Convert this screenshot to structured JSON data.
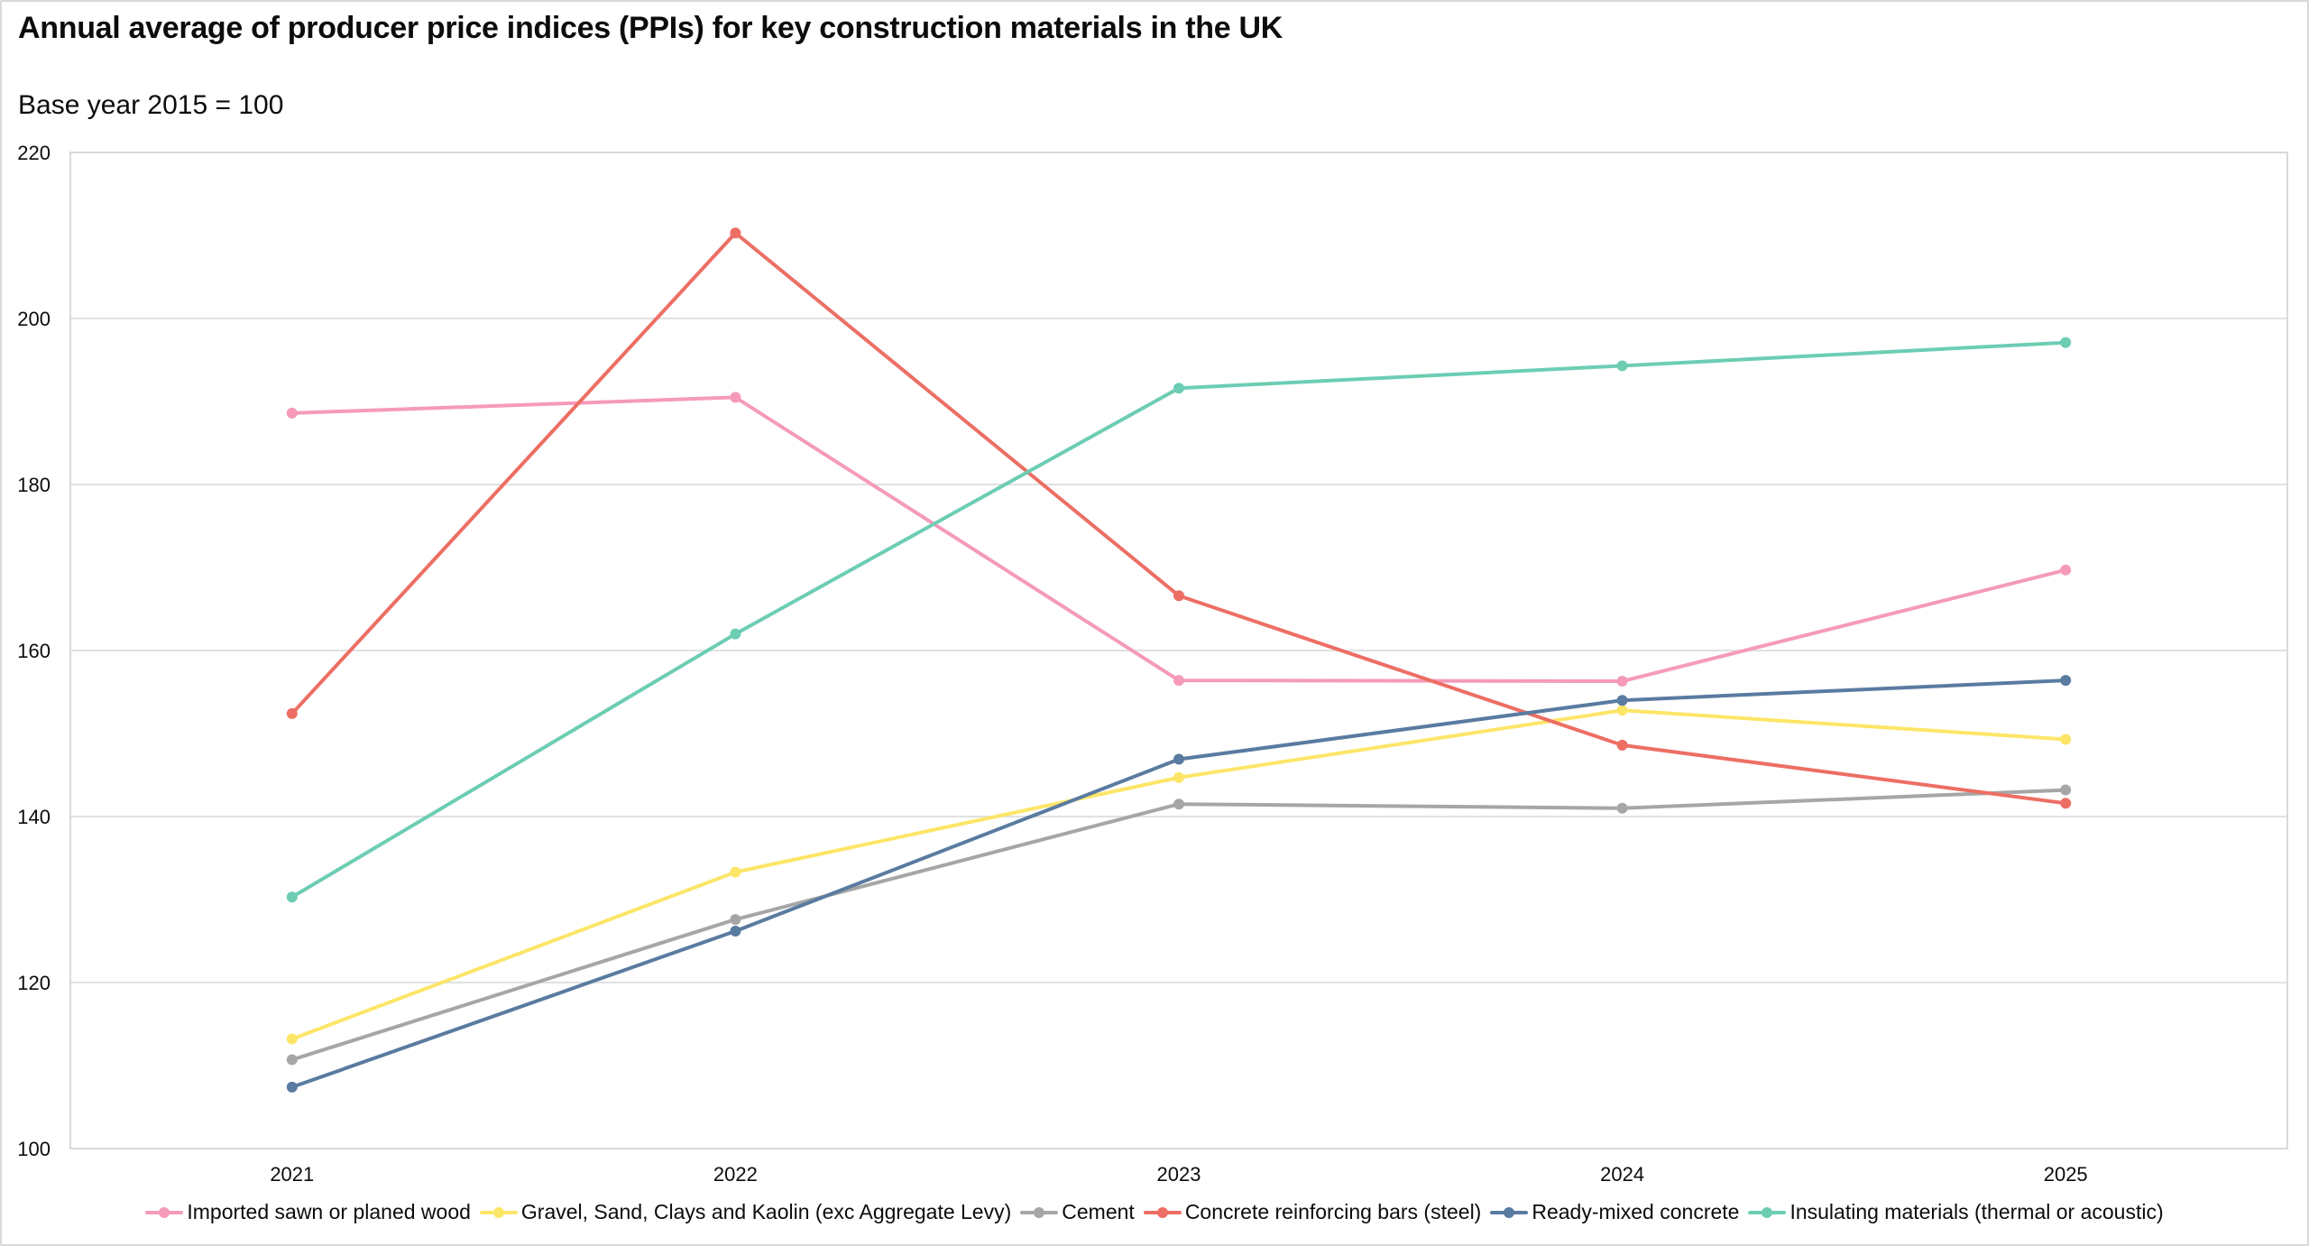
{
  "chart_data": {
    "type": "line",
    "title": "Annual average of producer price indices (PPIs) for key construction materials in the UK",
    "subtitle": "Base year 2015 = 100",
    "xlabel": "",
    "ylabel": "",
    "x": [
      "2021",
      "2022",
      "2023",
      "2024",
      "2025"
    ],
    "ylim": [
      100,
      220
    ],
    "yticks": [
      100,
      120,
      140,
      160,
      180,
      200,
      220
    ],
    "ytick_labels": [
      "100",
      "120",
      "140",
      "160",
      "180",
      "200",
      "220"
    ],
    "grid": true,
    "legend_position": "bottom",
    "series": [
      {
        "name": "Imported sawn or planed wood",
        "color": "#f59abb",
        "values": [
          188.6,
          190.5,
          156.4,
          156.3,
          169.7
        ]
      },
      {
        "name": "Gravel, Sand, Clays and Kaolin (exc Aggregate Levy)",
        "color": "#fde567",
        "values": [
          113.2,
          133.3,
          144.7,
          152.8,
          149.3
        ]
      },
      {
        "name": "Cement",
        "color": "#a6a6a6",
        "values": [
          110.7,
          127.6,
          141.5,
          141.0,
          143.2
        ]
      },
      {
        "name": "Concrete reinforcing bars (steel)",
        "color": "#ed6e64",
        "values": [
          152.4,
          210.3,
          166.6,
          148.6,
          141.6
        ]
      },
      {
        "name": "Ready-mixed concrete",
        "color": "#5a7ba0",
        "values": [
          107.4,
          126.2,
          146.9,
          154.0,
          156.4
        ]
      },
      {
        "name": "Insulating materials (thermal or acoustic)",
        "color": "#6ccdb3",
        "values": [
          130.3,
          162.0,
          191.6,
          194.3,
          197.1
        ]
      }
    ]
  }
}
